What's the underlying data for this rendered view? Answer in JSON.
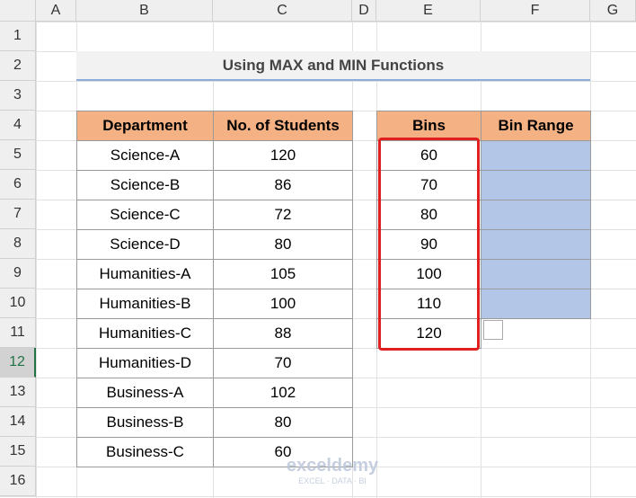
{
  "column_headers": [
    "A",
    "B",
    "C",
    "D",
    "E",
    "F",
    "G"
  ],
  "row_headers": [
    "1",
    "2",
    "3",
    "4",
    "5",
    "6",
    "7",
    "8",
    "9",
    "10",
    "11",
    "12",
    "13",
    "14",
    "15",
    "16"
  ],
  "title": "Using MAX and MIN Functions",
  "table": {
    "header": [
      "Department",
      "No. of Students"
    ],
    "rows": [
      [
        "Science-A",
        120
      ],
      [
        "Science-B",
        86
      ],
      [
        "Science-C",
        72
      ],
      [
        "Science-D",
        80
      ],
      [
        "Humanities-A",
        105
      ],
      [
        "Humanities-B",
        100
      ],
      [
        "Humanities-C",
        88
      ],
      [
        "Humanities-D",
        70
      ],
      [
        "Business-A",
        102
      ],
      [
        "Business-B",
        80
      ],
      [
        "Business-C",
        60
      ]
    ]
  },
  "bins_table": {
    "header": [
      "Bins",
      "Bin Range"
    ],
    "bins": [
      60,
      70,
      80,
      90,
      100,
      110,
      120
    ]
  },
  "watermark": {
    "brand": "exceldemy",
    "tagline": "EXCEL · DATA · BI"
  }
}
